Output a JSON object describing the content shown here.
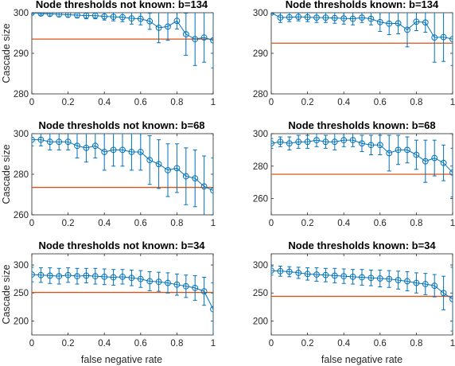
{
  "colors": {
    "series": "#0072BD",
    "reference": "#D95319",
    "axes": "#262626"
  },
  "chart_data": [
    {
      "type": "line",
      "title": "Node thresholds not known: b=134",
      "xlabel": "",
      "ylabel": "Cascade size",
      "xlim": [
        0,
        1
      ],
      "ylim": [
        280,
        300
      ],
      "xticks": [
        "0",
        "0.2",
        "0.4",
        "0.6",
        "0.8",
        "1"
      ],
      "yticks": [
        "280",
        "290",
        "300"
      ],
      "x": [
        0,
        0.05,
        0.1,
        0.15,
        0.2,
        0.25,
        0.3,
        0.35,
        0.4,
        0.45,
        0.5,
        0.55,
        0.6,
        0.65,
        0.7,
        0.75,
        0.8,
        0.85,
        0.9,
        0.95,
        1
      ],
      "y": [
        300,
        299.8,
        299.7,
        299.6,
        299.5,
        299.4,
        299.3,
        299.3,
        299.1,
        299.0,
        298.9,
        298.6,
        298.5,
        297.9,
        296.3,
        296.6,
        298.0,
        294.7,
        293.5,
        293.9,
        293.2
      ],
      "err": [
        0.2,
        0.4,
        0.5,
        0.6,
        0.6,
        0.7,
        0.8,
        0.8,
        0.9,
        1.0,
        1.1,
        1.4,
        1.5,
        2.0,
        3.7,
        3.4,
        2.0,
        5.2,
        6.5,
        6.1,
        6.8
      ],
      "reference": 293.5
    },
    {
      "type": "line",
      "title": "Node thresholds known: b=134",
      "xlabel": "",
      "ylabel": "",
      "xlim": [
        0,
        1
      ],
      "ylim": [
        280,
        300
      ],
      "xticks": [
        "0",
        "0.2",
        "0.4",
        "0.6",
        "0.8",
        "1"
      ],
      "yticks": [
        "280",
        "290",
        "300"
      ],
      "x": [
        0,
        0.05,
        0.1,
        0.15,
        0.2,
        0.25,
        0.3,
        0.35,
        0.4,
        0.45,
        0.5,
        0.55,
        0.6,
        0.65,
        0.7,
        0.75,
        0.8,
        0.85,
        0.9,
        0.95,
        1
      ],
      "y": [
        300,
        298.8,
        298.9,
        299.0,
        298.9,
        298.8,
        298.8,
        298.7,
        298.6,
        298.5,
        298.8,
        298.5,
        297.7,
        297.3,
        297.4,
        295.8,
        297.8,
        297.6,
        293.9,
        294.0,
        293.5
      ],
      "err": [
        0.2,
        1.2,
        1.1,
        1.0,
        1.1,
        1.2,
        1.2,
        1.3,
        1.4,
        1.5,
        1.2,
        1.5,
        2.3,
        2.7,
        2.6,
        4.2,
        2.2,
        2.4,
        6.1,
        6.0,
        6.5
      ],
      "reference": 292.5
    },
    {
      "type": "line",
      "title": "Node thresholds not known: b=68",
      "xlabel": "",
      "ylabel": "Cascade size",
      "xlim": [
        0,
        1
      ],
      "ylim": [
        260,
        300
      ],
      "xticks": [
        "0",
        "0.2",
        "0.4",
        "0.6",
        "0.8",
        "1"
      ],
      "yticks": [
        "260",
        "280",
        "300"
      ],
      "x": [
        0,
        0.05,
        0.1,
        0.15,
        0.2,
        0.25,
        0.3,
        0.35,
        0.4,
        0.45,
        0.5,
        0.55,
        0.6,
        0.65,
        0.7,
        0.75,
        0.8,
        0.85,
        0.9,
        0.95,
        1
      ],
      "y": [
        297,
        297,
        296,
        296,
        296,
        294,
        293,
        294,
        291,
        292,
        292,
        291,
        291,
        287,
        285,
        282,
        283,
        279,
        278,
        274,
        272
      ],
      "err": [
        3,
        3,
        4,
        4,
        4,
        6,
        7,
        6,
        9,
        8,
        8,
        9,
        9,
        12,
        12,
        13,
        12,
        14,
        14,
        15,
        16
      ],
      "reference": 273.5
    },
    {
      "type": "line",
      "title": "Node thresholds known: b=68",
      "xlabel": "",
      "ylabel": "",
      "xlim": [
        0,
        1
      ],
      "ylim": [
        250,
        300
      ],
      "xticks": [
        "0",
        "0.2",
        "0.4",
        "0.6",
        "0.8",
        "1"
      ],
      "yticks": [
        "260",
        "280",
        "300"
      ],
      "x": [
        0,
        0.05,
        0.1,
        0.15,
        0.2,
        0.25,
        0.3,
        0.35,
        0.4,
        0.45,
        0.5,
        0.55,
        0.6,
        0.65,
        0.7,
        0.75,
        0.8,
        0.85,
        0.9,
        0.95,
        1
      ],
      "y": [
        294,
        295,
        294,
        295,
        295,
        296,
        295,
        295,
        296,
        296,
        294,
        293,
        293,
        288,
        290,
        290,
        287,
        283,
        285,
        282,
        276
      ],
      "err": [
        3,
        3,
        4,
        4,
        4,
        4,
        4,
        5,
        4,
        4,
        5,
        6,
        6,
        11,
        9,
        8,
        9,
        13,
        11,
        11,
        15
      ],
      "reference": 275
    },
    {
      "type": "line",
      "title": "Node thresholds not known: b=34",
      "xlabel": "false negative rate",
      "ylabel": "Cascade size",
      "xlim": [
        0,
        1
      ],
      "ylim": [
        175,
        320
      ],
      "xticks": [
        "0",
        "0.2",
        "0.4",
        "0.6",
        "0.8",
        "1"
      ],
      "yticks": [
        "200",
        "250",
        "300"
      ],
      "x": [
        0,
        0.05,
        0.1,
        0.15,
        0.2,
        0.25,
        0.3,
        0.35,
        0.4,
        0.45,
        0.5,
        0.55,
        0.6,
        0.65,
        0.7,
        0.75,
        0.8,
        0.85,
        0.9,
        0.95,
        1
      ],
      "y": [
        283,
        282,
        281,
        280,
        282,
        280,
        281,
        280,
        279,
        278,
        279,
        277,
        275,
        271,
        270,
        268,
        265,
        262,
        259,
        253,
        221
      ],
      "err": [
        13,
        13,
        14,
        14,
        13,
        14,
        13,
        14,
        14,
        14,
        13,
        14,
        15,
        17,
        17,
        18,
        19,
        20,
        22,
        25,
        47
      ],
      "reference": 251
    },
    {
      "type": "line",
      "title": "Node thresholds known: b=34",
      "xlabel": "false negative rate",
      "ylabel": "",
      "xlim": [
        0,
        1
      ],
      "ylim": [
        175,
        320
      ],
      "xticks": [
        "0",
        "0.2",
        "0.4",
        "0.6",
        "0.8",
        "1"
      ],
      "yticks": [
        "200",
        "250",
        "300"
      ],
      "x": [
        0,
        0.05,
        0.1,
        0.15,
        0.2,
        0.25,
        0.3,
        0.35,
        0.4,
        0.45,
        0.5,
        0.55,
        0.6,
        0.65,
        0.7,
        0.75,
        0.8,
        0.85,
        0.9,
        0.95,
        1
      ],
      "y": [
        290,
        289,
        288,
        286,
        284,
        283,
        282,
        281,
        280,
        279,
        278,
        277,
        276,
        275,
        273,
        271,
        268,
        266,
        263,
        250,
        239
      ],
      "err": [
        8,
        9,
        9,
        10,
        11,
        12,
        12,
        13,
        13,
        13,
        14,
        14,
        15,
        15,
        16,
        17,
        18,
        19,
        20,
        30,
        57
      ],
      "reference": 244
    }
  ]
}
